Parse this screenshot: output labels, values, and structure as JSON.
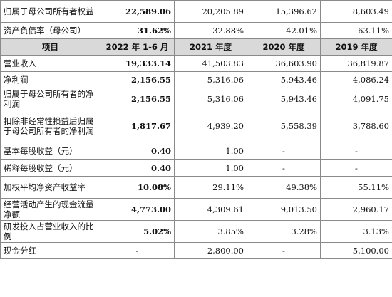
{
  "top_rows": [
    {
      "label": "归属于母公司所有者权益",
      "v2022": "22,589.06",
      "v2021": "20,205.89",
      "v2020": "15,396.62",
      "v2019": "8,603.49"
    },
    {
      "label": "资产负债率（母公司）",
      "v2022": "31.62%",
      "v2021": "32.88%",
      "v2020": "42.01%",
      "v2019": "63.11%"
    }
  ],
  "header": {
    "item": "项目",
    "c2022": "2022 年 1-6 月",
    "c2021": "2021 年度",
    "c2020": "2020 年度",
    "c2019": "2019 年度"
  },
  "rows": [
    {
      "label": "营业收入",
      "v2022": "19,333.14",
      "v2021": "41,503.83",
      "v2020": "36,603.90",
      "v2019": "36,819.87"
    },
    {
      "label": "净利润",
      "v2022": "2,156.55",
      "v2021": "5,316.06",
      "v2020": "5,943.46",
      "v2019": "4,086.24"
    },
    {
      "label": "归属于母公司所有者的净利润",
      "v2022": "2,156.55",
      "v2021": "5,316.06",
      "v2020": "5,943.46",
      "v2019": "4,091.75"
    },
    {
      "label": "扣除非经常性损益后归属于母公司所有者的净利润",
      "v2022": "1,817.67",
      "v2021": "4,939.20",
      "v2020": "5,558.39",
      "v2019": "3,788.60"
    },
    {
      "label": "基本每股收益（元）",
      "v2022": "0.40",
      "v2021": "1.00",
      "v2020": "-",
      "v2019": "-"
    },
    {
      "label": "稀释每股收益（元）",
      "v2022": "0.40",
      "v2021": "1.00",
      "v2020": "-",
      "v2019": "-"
    },
    {
      "label": "加权平均净资产收益率",
      "v2022": "10.08%",
      "v2021": "29.11%",
      "v2020": "49.38%",
      "v2019": "55.11%"
    },
    {
      "label": "经营活动产生的现金流量净额",
      "v2022": "4,773.00",
      "v2021": "4,309.61",
      "v2020": "9,013.50",
      "v2019": "2,960.17"
    },
    {
      "label": "研发投入占营业收入的比例",
      "v2022": "5.02%",
      "v2021": "3.85%",
      "v2020": "3.28%",
      "v2019": "3.13%"
    },
    {
      "label": "现金分红",
      "v2022": "-",
      "v2021": "2,800.00",
      "v2020": "-",
      "v2019": "5,100.00"
    }
  ]
}
